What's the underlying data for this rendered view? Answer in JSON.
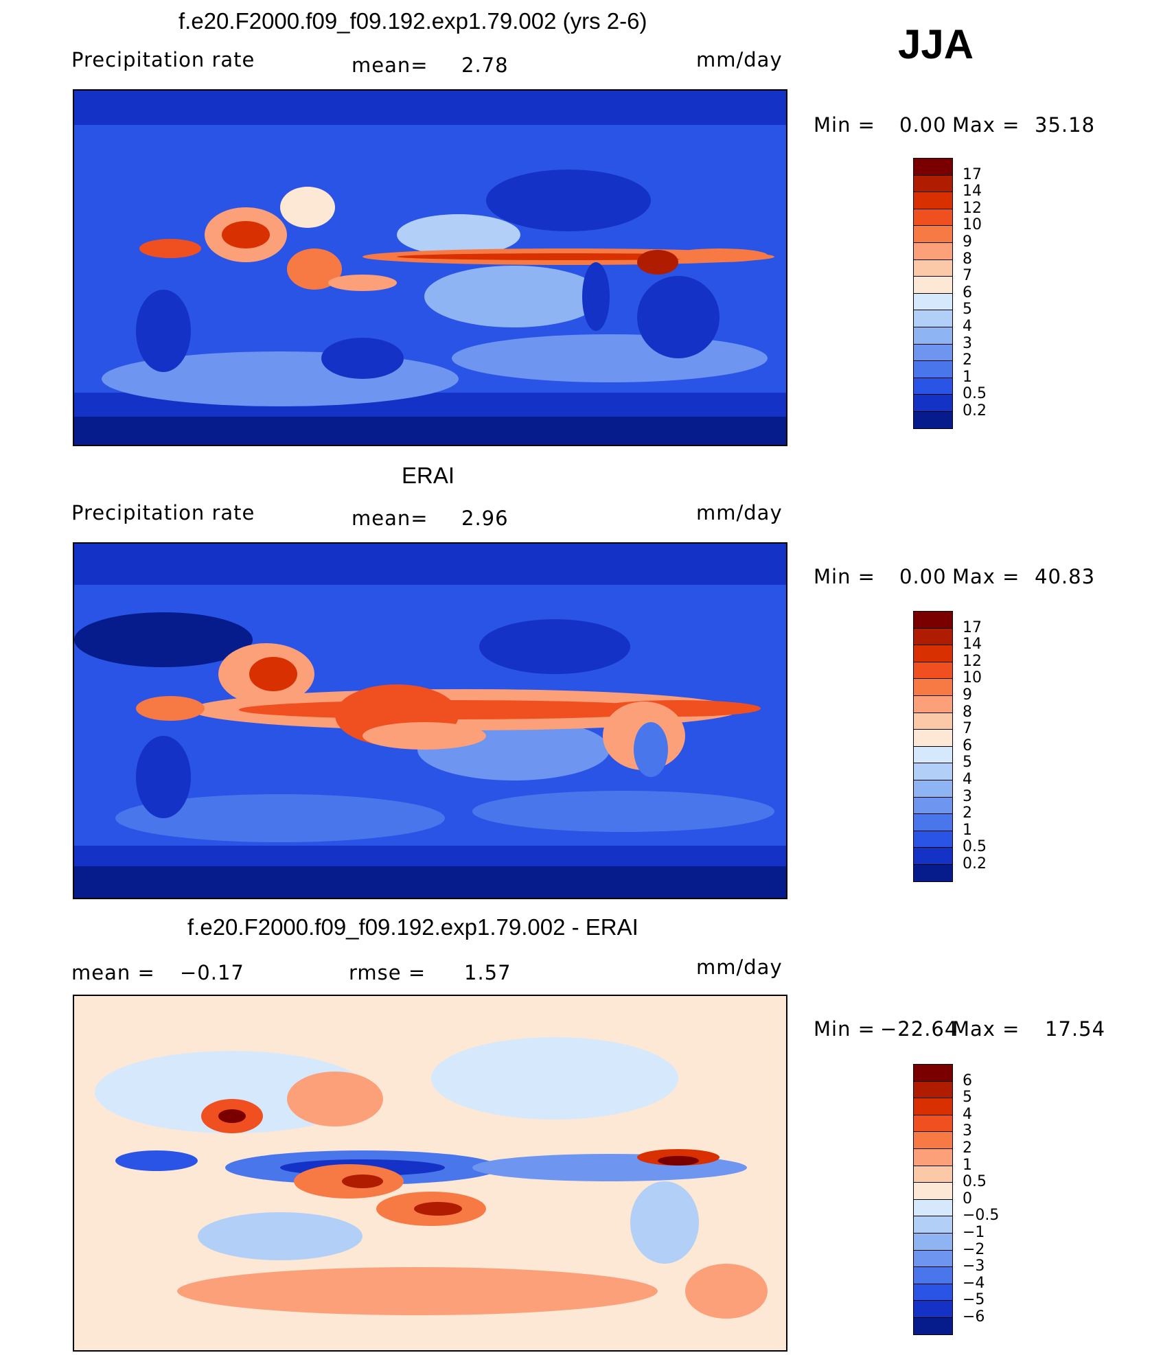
{
  "season": "JJA",
  "panels": [
    {
      "title": "f.e20.F2000.f09_f09.192.exp1.79.002 (yrs 2-6)",
      "left_label": "Precipitation  rate",
      "mean_label": "mean=",
      "mean_value": "2.78",
      "units": "mm/day",
      "min_label": "Min  =",
      "min_value": "0.00",
      "max_label": "Max  =",
      "max_value": "35.18"
    },
    {
      "title": "ERAI",
      "left_label": "Precipitation  rate",
      "mean_label": "mean=",
      "mean_value": "2.96",
      "units": "mm/day",
      "min_label": "Min  =",
      "min_value": "0.00",
      "max_label": "Max  =",
      "max_value": "40.83"
    },
    {
      "title": "f.e20.F2000.f09_f09.192.exp1.79.002 - ERAI",
      "left_label": "mean  =",
      "mean_value": "−0.17",
      "rmse_label": "rmse  =",
      "rmse_value": "1.57",
      "units": "mm/day",
      "min_label": "Min  =",
      "min_value": "−22.64",
      "max_label": "Max  =",
      "max_value": "17.54"
    }
  ],
  "chart_data": [
    {
      "type": "heatmap",
      "title": "f.e20.F2000.f09_f09.192.exp1.79.002 (yrs 2-6)",
      "variable": "Precipitation rate",
      "units": "mm/day",
      "mean": 2.78,
      "min": 0.0,
      "max": 35.18,
      "colorbar_levels": [
        "17",
        "14",
        "12",
        "10",
        "9",
        "8",
        "7",
        "6",
        "5",
        "4",
        "3",
        "2",
        "1",
        "0.5",
        "0.2"
      ],
      "colorbar_colors": [
        "#7a0000",
        "#b01c00",
        "#d83000",
        "#f05020",
        "#f77a45",
        "#fca07a",
        "#fcc9a8",
        "#fde8d6",
        "#d6e8fb",
        "#b2d0f7",
        "#8fb4f3",
        "#6e96f0",
        "#4a76ec",
        "#2a54e6",
        "#1433c6",
        "#061c8c"
      ]
    },
    {
      "type": "heatmap",
      "title": "ERAI",
      "variable": "Precipitation rate",
      "units": "mm/day",
      "mean": 2.96,
      "min": 0.0,
      "max": 40.83,
      "colorbar_levels": [
        "17",
        "14",
        "12",
        "10",
        "9",
        "8",
        "7",
        "6",
        "5",
        "4",
        "3",
        "2",
        "1",
        "0.5",
        "0.2"
      ],
      "colorbar_colors": [
        "#7a0000",
        "#b01c00",
        "#d83000",
        "#f05020",
        "#f77a45",
        "#fca07a",
        "#fcc9a8",
        "#fde8d6",
        "#d6e8fb",
        "#b2d0f7",
        "#8fb4f3",
        "#6e96f0",
        "#4a76ec",
        "#2a54e6",
        "#1433c6",
        "#061c8c"
      ]
    },
    {
      "type": "heatmap",
      "title": "f.e20.F2000.f09_f09.192.exp1.79.002 - ERAI",
      "units": "mm/day",
      "mean": -0.17,
      "rmse": 1.57,
      "min": -22.64,
      "max": 17.54,
      "colorbar_levels": [
        "6",
        "5",
        "4",
        "3",
        "2",
        "1",
        "0.5",
        "0",
        "−0.5",
        "−1",
        "−2",
        "−3",
        "−4",
        "−5",
        "−6"
      ],
      "colorbar_colors": [
        "#7a0000",
        "#b01c00",
        "#d83000",
        "#f05020",
        "#f77a45",
        "#fca07a",
        "#fcc9a8",
        "#fde8d6",
        "#d6e8fb",
        "#b2d0f7",
        "#8fb4f3",
        "#6e96f0",
        "#4a76ec",
        "#2a54e6",
        "#1433c6",
        "#061c8c"
      ]
    }
  ]
}
